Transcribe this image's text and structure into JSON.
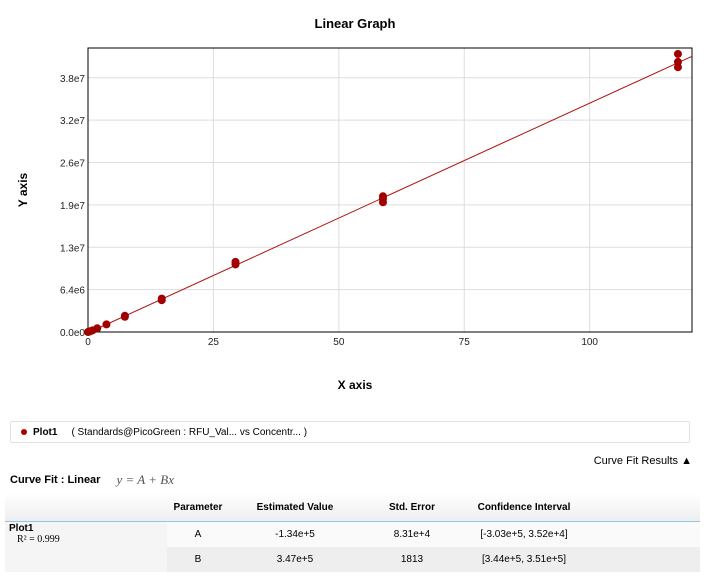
{
  "chart_data": {
    "type": "scatter",
    "title": "Linear Graph",
    "xlabel": "X axis",
    "ylabel": "Y axis",
    "xlim": [
      0,
      120.4
    ],
    "ylim": [
      0,
      42900000
    ],
    "xticks": [
      0,
      25,
      50,
      75,
      100
    ],
    "xtick_labels": [
      "0",
      "25",
      "50",
      "75",
      "100"
    ],
    "yticks": [
      0,
      6400000,
      12800000,
      19200000,
      25600000,
      32000000,
      38400000
    ],
    "ytick_labels": [
      "0.0e0",
      "6.4e6",
      "1.3e7",
      "1.9e7",
      "2.6e7",
      "3.2e7",
      "3.8e7"
    ],
    "grid": true,
    "colors": {
      "points": "#a00000",
      "line": "#b01010"
    },
    "series": [
      {
        "name": "Plot1",
        "points": [
          [
            0,
            0
          ],
          [
            0.23,
            60000
          ],
          [
            0.46,
            120000
          ],
          [
            0.92,
            250000
          ],
          [
            1.84,
            560000
          ],
          [
            3.68,
            1150000
          ],
          [
            7.35,
            2300000
          ],
          [
            7.35,
            2450000
          ],
          [
            14.7,
            4800000
          ],
          [
            14.7,
            5050000
          ],
          [
            29.4,
            10200000
          ],
          [
            29.4,
            10600000
          ],
          [
            58.8,
            19600000
          ],
          [
            58.8,
            20100000
          ],
          [
            58.8,
            20500000
          ],
          [
            117.6,
            40000000
          ],
          [
            117.6,
            40800000
          ],
          [
            117.6,
            42000000
          ]
        ]
      }
    ],
    "fit": {
      "A": -134000,
      "B": 347000
    }
  },
  "legend": {
    "name": "Plot1",
    "description": "( Standards@PicoGreen : RFU_Val...   vs  Concentr...  )"
  },
  "results_toggle": "Curve Fit Results ▲",
  "curve_fit": {
    "label": "Curve Fit : Linear",
    "equation": "y = A + Bx"
  },
  "table": {
    "headers": [
      "",
      "Parameter",
      "Estimated Value",
      "Std. Error",
      "Confidence Interval"
    ],
    "plot_name": "Plot1",
    "r2_label": "R² = 0.999",
    "rows": [
      [
        "A",
        "-1.34e+5",
        "8.31e+4",
        "[-3.03e+5, 3.52e+4]"
      ],
      [
        "B",
        "3.47e+5",
        "1813",
        "[3.44e+5, 3.51e+5]"
      ]
    ]
  }
}
